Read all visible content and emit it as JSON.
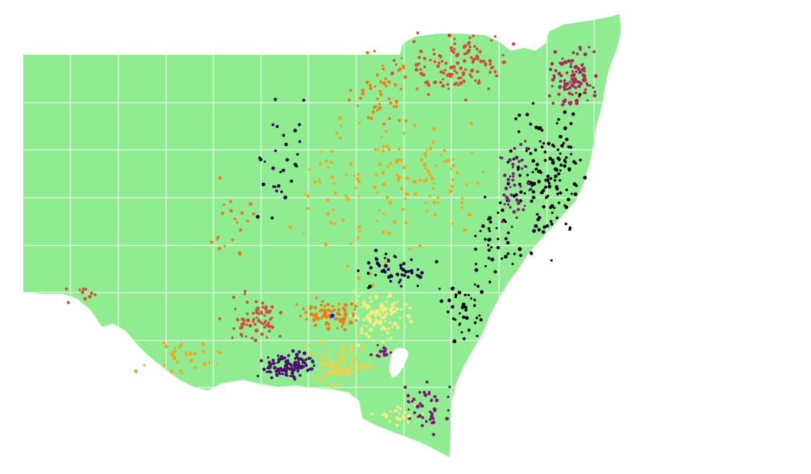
{
  "map": {
    "land_color": "#90ec90",
    "grid_color": "#ffffff",
    "background": "#ffffff",
    "highlight_color": "#1a1aff",
    "palette": [
      "#000004",
      "#1e0c45",
      "#4b0f6d",
      "#7c1d6f",
      "#a72d5d",
      "#d64b40",
      "#f17c15",
      "#f9a517",
      "#f2cf43",
      "#f6ec80"
    ]
  }
}
